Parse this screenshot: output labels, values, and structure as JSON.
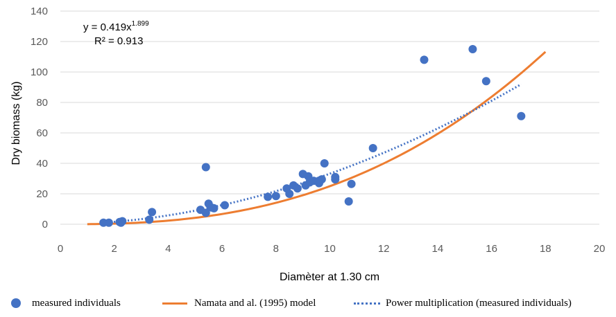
{
  "chart_data": {
    "type": "scatter",
    "title": "",
    "xlabel": "Diamèter at 1.30 cm",
    "ylabel": "Dry biomass (kg)",
    "xlim": [
      0,
      20
    ],
    "ylim": [
      0,
      140
    ],
    "xticks": [
      "0",
      "2",
      "4",
      "6",
      "8",
      "10",
      "12",
      "14",
      "16",
      "18",
      "20"
    ],
    "yticks": [
      "0",
      "20",
      "40",
      "60",
      "80",
      "100",
      "120",
      "140"
    ],
    "grid": "horizontal",
    "legend_position": "bottom",
    "equation": {
      "prefix": "y = 0.419x",
      "exponent": "1.899",
      "r2": "R² = 0.913"
    },
    "series": [
      {
        "name": "measured individuals",
        "kind": "scatter",
        "color": "#4472C4",
        "points": [
          [
            1.6,
            1
          ],
          [
            1.8,
            1
          ],
          [
            2.2,
            1.5
          ],
          [
            2.25,
            1
          ],
          [
            2.3,
            2
          ],
          [
            3.3,
            3
          ],
          [
            3.4,
            8
          ],
          [
            5.2,
            9.5
          ],
          [
            5.4,
            7.5
          ],
          [
            5.4,
            37.5
          ],
          [
            5.5,
            13.5
          ],
          [
            5.6,
            11
          ],
          [
            5.7,
            10.5
          ],
          [
            6.1,
            12.5
          ],
          [
            7.7,
            18
          ],
          [
            8.0,
            18.5
          ],
          [
            8.4,
            23.5
          ],
          [
            8.5,
            20
          ],
          [
            8.65,
            25.5
          ],
          [
            8.8,
            23.5
          ],
          [
            9.0,
            33
          ],
          [
            9.1,
            25.5
          ],
          [
            9.2,
            31.5
          ],
          [
            9.25,
            27.5
          ],
          [
            9.4,
            28.5
          ],
          [
            9.6,
            27
          ],
          [
            9.65,
            29
          ],
          [
            9.7,
            29.5
          ],
          [
            9.8,
            40
          ],
          [
            10.2,
            31
          ],
          [
            10.2,
            29.5
          ],
          [
            10.7,
            15
          ],
          [
            10.8,
            26.5
          ],
          [
            11.6,
            50
          ],
          [
            13.5,
            108
          ],
          [
            15.3,
            115
          ],
          [
            15.8,
            94
          ],
          [
            17.1,
            71
          ]
        ]
      },
      {
        "name": "Namata and al. (1995) model",
        "kind": "line",
        "color": "#ED7D31",
        "x_range": [
          1,
          18
        ],
        "model": {
          "a": 0.0673,
          "b": 2.57
        }
      },
      {
        "name": "Power multiplication (measured individuals)",
        "kind": "trendline",
        "color": "#4472C4",
        "x_range": [
          1.6,
          17.1
        ],
        "model": {
          "a": 0.419,
          "b": 1.899
        }
      }
    ]
  },
  "legend": {
    "measured": "measured individuals",
    "model": "Namata and al. (1995) model",
    "power": "Power multiplication (measured individuals)"
  }
}
